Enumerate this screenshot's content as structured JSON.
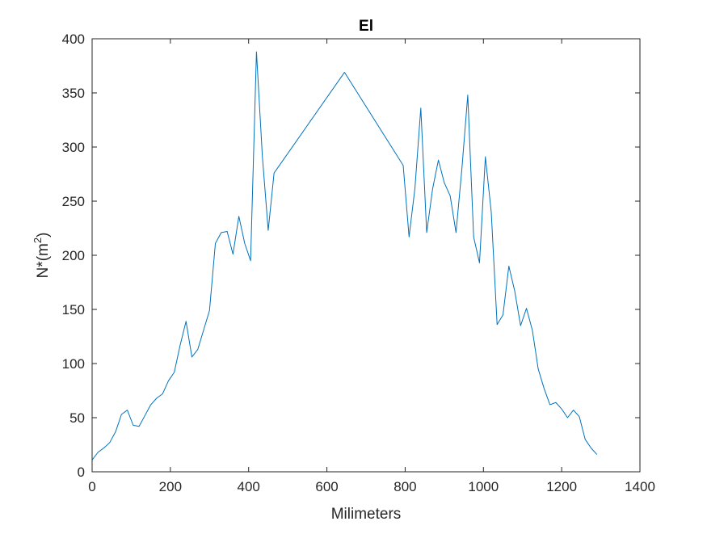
{
  "chart_data": {
    "type": "line",
    "title": "El",
    "xlabel": "Milimeters",
    "ylabel_base": "N*(m",
    "ylabel_sup": "2",
    "ylabel_close": ")",
    "xlim": [
      0,
      1400
    ],
    "ylim": [
      0,
      400
    ],
    "xticks": [
      0,
      200,
      400,
      600,
      800,
      1000,
      1200,
      1400
    ],
    "yticks": [
      0,
      50,
      100,
      150,
      200,
      250,
      300,
      350,
      400
    ],
    "grid": false,
    "line_color": "#0072BD",
    "series": [
      {
        "x": [
          0,
          15,
          30,
          45,
          60,
          75,
          90,
          105,
          120,
          135,
          150,
          165,
          180,
          195,
          210,
          225,
          240,
          255,
          270,
          285,
          300,
          315,
          330,
          345,
          360,
          375,
          390,
          405,
          420,
          435,
          450,
          465,
          645,
          795,
          810,
          825,
          840,
          855,
          870,
          885,
          900,
          915,
          930,
          945,
          960,
          975,
          990,
          1005,
          1020,
          1035,
          1050,
          1065,
          1080,
          1095,
          1110,
          1125,
          1140,
          1155,
          1170,
          1185,
          1200,
          1215,
          1230,
          1245,
          1260,
          1275,
          1290
        ],
        "y": [
          11,
          18,
          22,
          27,
          37,
          53,
          57,
          43,
          42,
          52,
          62,
          68,
          72,
          84,
          92,
          117,
          139,
          106,
          113,
          131,
          149,
          211,
          221,
          222,
          201,
          236,
          211,
          195,
          388,
          292,
          223,
          276,
          369,
          283,
          217,
          262,
          336,
          221,
          261,
          288,
          267,
          255,
          221,
          280,
          348,
          217,
          193,
          291,
          240,
          136,
          145,
          190,
          167,
          135,
          151,
          131,
          95,
          77,
          62,
          64,
          58,
          50,
          57,
          51,
          30,
          22,
          16
        ]
      }
    ]
  }
}
